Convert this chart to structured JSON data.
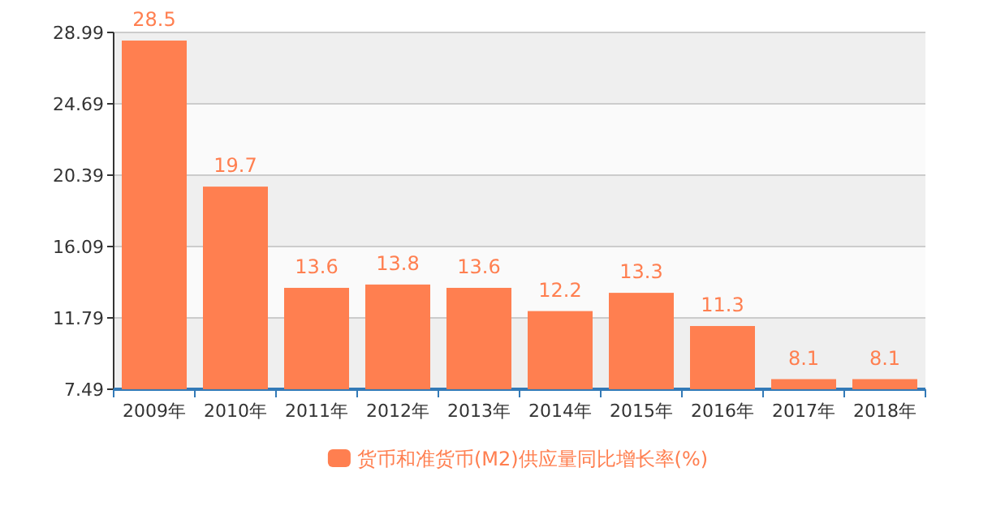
{
  "chart_data": {
    "type": "bar",
    "categories": [
      "2009年",
      "2010年",
      "2011年",
      "2012年",
      "2013年",
      "2014年",
      "2015年",
      "2016年",
      "2017年",
      "2018年"
    ],
    "series": [
      {
        "name": "货币和准货币(M2)供应量同比增长率(%)",
        "color": "#ff7f50",
        "values": [
          28.5,
          19.7,
          13.6,
          13.8,
          13.6,
          12.2,
          13.3,
          11.3,
          8.1,
          8.1
        ]
      }
    ],
    "ylim": [
      7.49,
      28.99
    ],
    "yticks": [
      7.49,
      11.79,
      16.09,
      20.39,
      24.69,
      28.99
    ],
    "grid": "y",
    "legend": "bottom",
    "data_labels": true
  }
}
